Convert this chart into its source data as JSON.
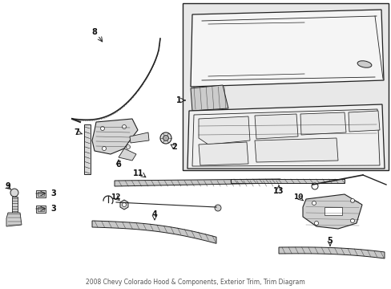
{
  "title": "2008 Chevy Colorado Hood & Components, Exterior Trim, Trim Diagram",
  "bg_color": "#ffffff",
  "fig_width": 4.89,
  "fig_height": 3.6,
  "dpi": 100,
  "line_color": "#222222",
  "text_color": "#111111",
  "gray_fill": "#e8e8e8",
  "light_gray": "#f0f0f0",
  "med_gray": "#cccccc",
  "dark_gray": "#888888",
  "box_bg": "#e8e8e8"
}
